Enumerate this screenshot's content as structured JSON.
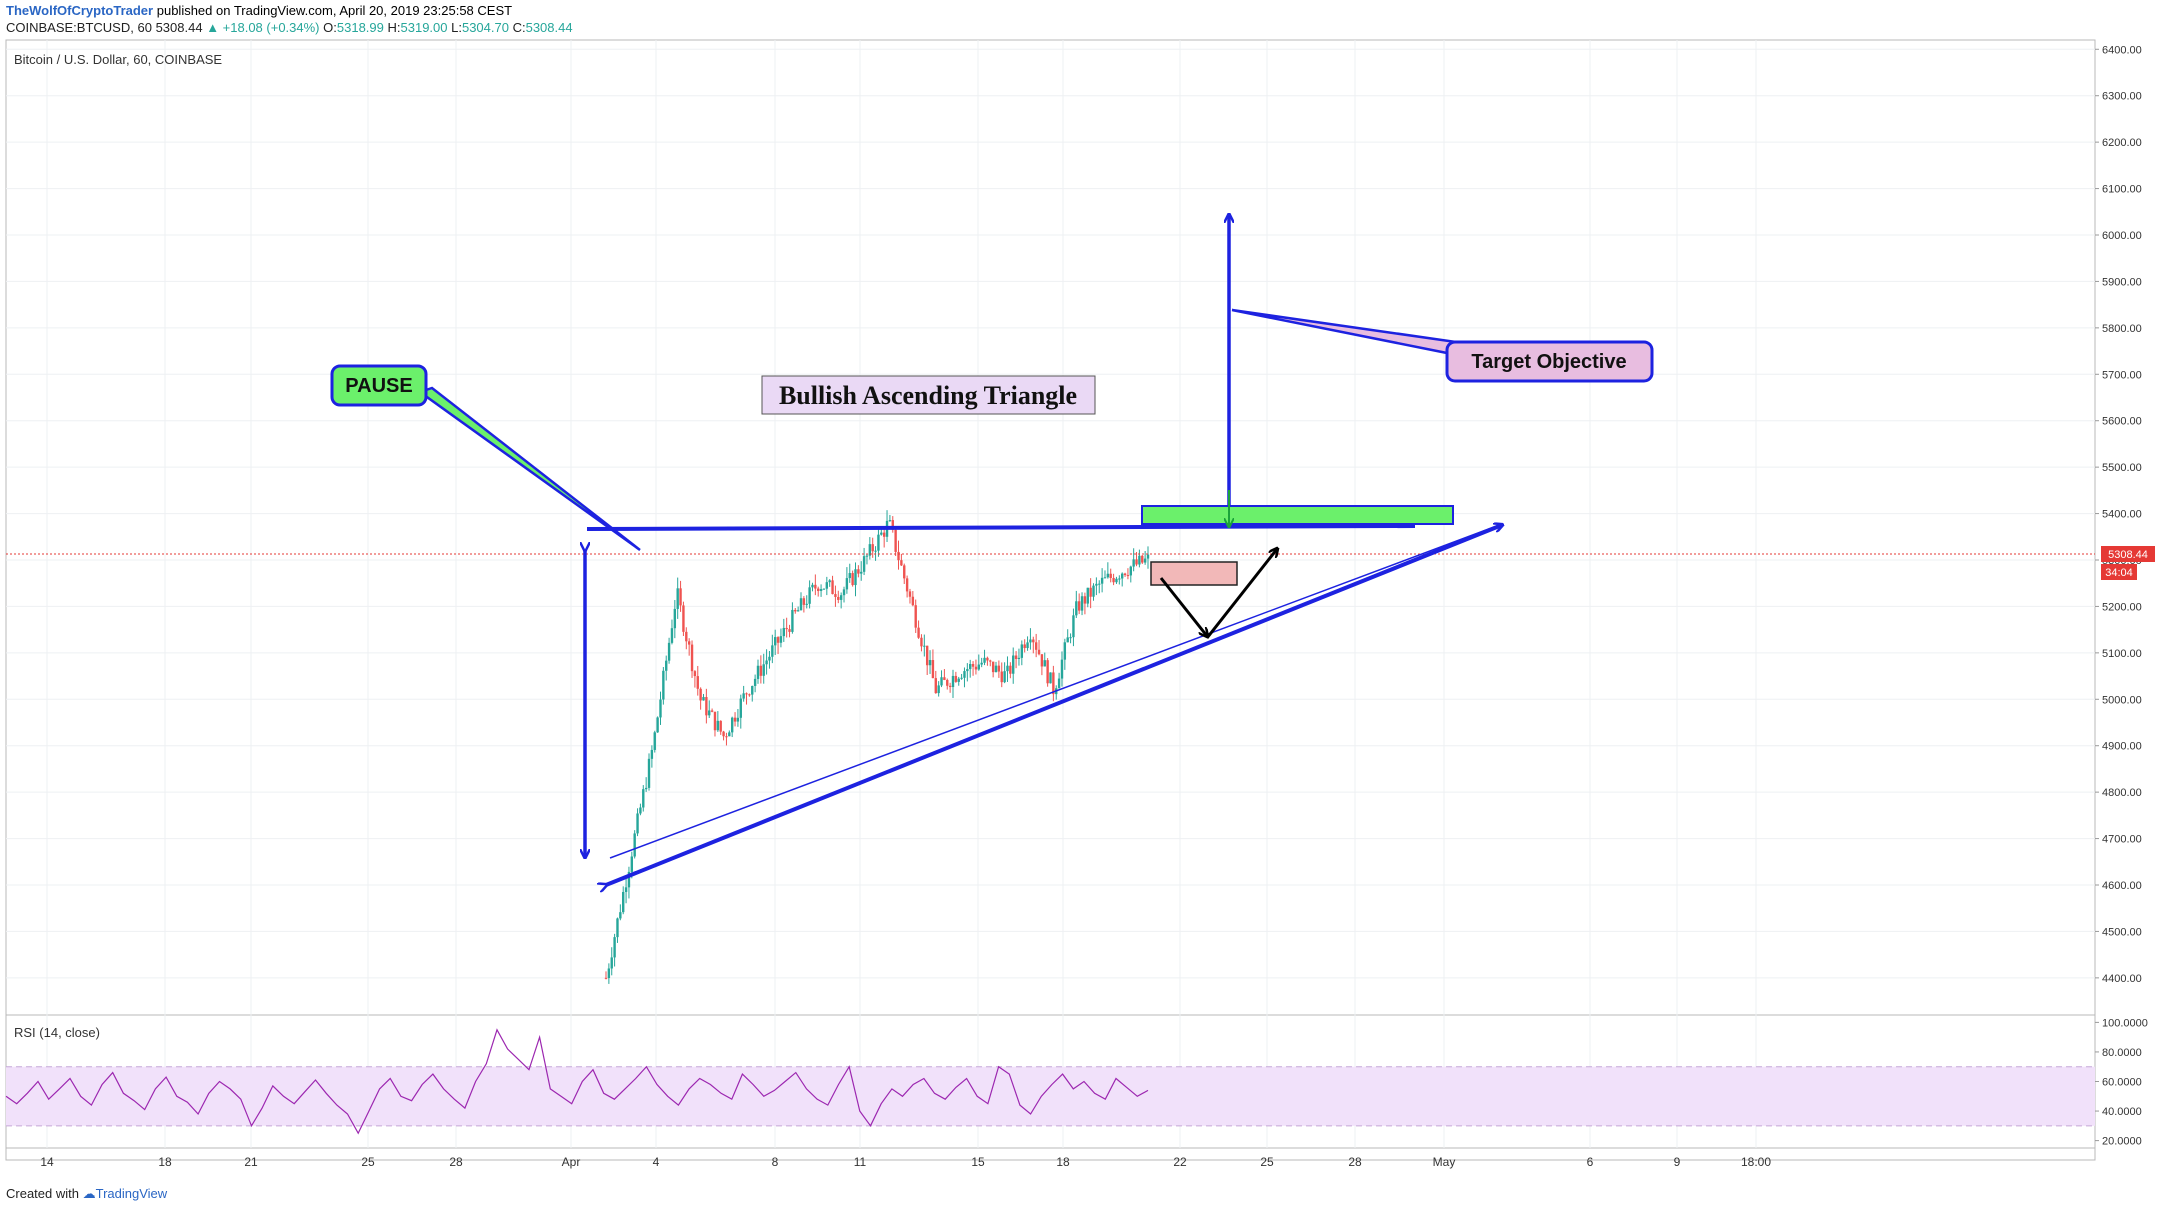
{
  "header": {
    "author": "TheWolfOfCryptoTrader",
    "published": "published on TradingView.com, April 20, 2019 23:25:58 CEST",
    "symbol": "COINBASE:BTCUSD, 60",
    "last": "5308.44",
    "change": "▲ +18.08 (+0.34%)",
    "o_label": "O:",
    "o": "5318.99",
    "h_label": "H:",
    "h": "5319.00",
    "l_label": "L:",
    "l": "5304.70",
    "c_label": "C:",
    "c": "5308.44"
  },
  "footer": {
    "created": "Created with",
    "brand": "TradingView"
  },
  "colors": {
    "up": "#26a69a",
    "down": "#ef5350",
    "annotation": "#1d22e0",
    "rsi": "#9c27b0",
    "price_line": "#e53935"
  },
  "chart_data": [
    {
      "type": "candlestick",
      "title": "Bitcoin / U.S. Dollar, 60, COINBASE",
      "xlabel": "",
      "ylabel": "",
      "ylim": [
        4320,
        6420
      ],
      "y_ticks": [
        "6400.00",
        "6300.00",
        "6200.00",
        "6100.00",
        "6000.00",
        "5900.00",
        "5800.00",
        "5700.00",
        "5600.00",
        "5500.00",
        "5400.00",
        "5300.00",
        "5200.00",
        "5100.00",
        "5000.00",
        "4900.00",
        "4800.00",
        "4700.00",
        "4600.00",
        "4500.00",
        "4400.00"
      ],
      "x_ticks": [
        "14",
        "18",
        "21",
        "25",
        "28",
        "Apr",
        "4",
        "8",
        "11",
        "15",
        "18",
        "22",
        "25",
        "28",
        "May",
        "6",
        "9",
        "18:00"
      ],
      "last_price": "5308.44",
      "countdown": "34:04",
      "path_points": [
        {
          "t": "Apr 1",
          "price": 4400
        },
        {
          "t": "Apr 1",
          "price": 4650
        },
        {
          "t": "Apr 2",
          "price": 4900
        },
        {
          "t": "Apr 3",
          "price": 5230
        },
        {
          "t": "Apr 3",
          "price": 5000
        },
        {
          "t": "Apr 4",
          "price": 4920
        },
        {
          "t": "Apr 5",
          "price": 5020
        },
        {
          "t": "Apr 6",
          "price": 5100
        },
        {
          "t": "Apr 7",
          "price": 5180
        },
        {
          "t": "Apr 8",
          "price": 5250
        },
        {
          "t": "Apr 9",
          "price": 5230
        },
        {
          "t": "Apr 10",
          "price": 5300
        },
        {
          "t": "Apr 10",
          "price": 5380
        },
        {
          "t": "Apr 11",
          "price": 5200
        },
        {
          "t": "Apr 11",
          "price": 5020
        },
        {
          "t": "Apr 12",
          "price": 5060
        },
        {
          "t": "Apr 13",
          "price": 5080
        },
        {
          "t": "Apr 14",
          "price": 5050
        },
        {
          "t": "Apr 15",
          "price": 5150
        },
        {
          "t": "Apr 16",
          "price": 5020
        },
        {
          "t": "Apr 17",
          "price": 5200
        },
        {
          "t": "Apr 18",
          "price": 5250
        },
        {
          "t": "Apr 19",
          "price": 5280
        },
        {
          "t": "Apr 20",
          "price": 5300
        }
      ],
      "annotations": {
        "title_box": "Bullish Ascending Triangle",
        "pause_label": "PAUSE",
        "target_label": "Target Objective",
        "resistance": 5360,
        "target_zone": [
          5375,
          5415
        ],
        "target_price": 6050
      }
    },
    {
      "type": "line",
      "title": "RSI (14, close)",
      "xlabel": "",
      "ylabel": "",
      "ylim": [
        15,
        105
      ],
      "y_ticks": [
        "100.0000",
        "80.0000",
        "60.0000",
        "40.0000",
        "20.0000"
      ],
      "band": [
        30,
        70
      ],
      "series": [
        {
          "values": [
            50,
            45,
            52,
            60,
            48,
            55,
            62,
            50,
            44,
            58,
            66,
            52,
            47,
            41,
            55,
            63,
            50,
            46,
            38,
            52,
            60,
            55,
            48,
            30,
            42,
            57,
            50,
            45,
            53,
            61,
            52,
            44,
            38,
            25,
            40,
            55,
            62,
            50,
            47,
            58,
            65,
            55,
            48,
            42,
            60,
            72,
            95,
            82,
            75,
            68,
            90,
            55,
            50,
            45,
            60,
            68,
            52,
            48,
            55,
            62,
            70,
            58,
            50,
            44,
            55,
            62,
            58,
            52,
            48,
            65,
            58,
            50,
            54,
            60,
            66,
            55,
            48,
            44,
            58,
            70,
            40,
            30,
            45,
            55,
            50,
            58,
            62,
            52,
            48,
            56,
            62,
            50,
            45,
            70,
            65,
            44,
            38,
            50,
            58,
            65,
            55,
            60,
            52,
            48,
            62,
            56,
            50,
            54
          ]
        }
      ]
    }
  ]
}
